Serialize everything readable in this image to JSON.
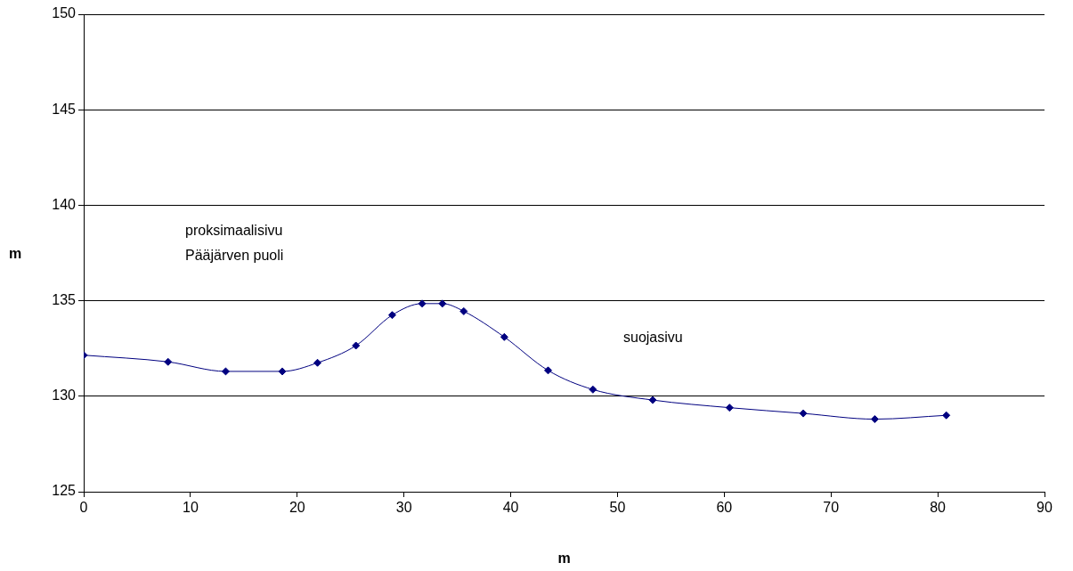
{
  "chart_data": {
    "type": "line",
    "xlabel": "m",
    "ylabel": "m",
    "x": [
      0,
      7.9,
      13.3,
      18.6,
      21.9,
      25.5,
      28.9,
      31.7,
      33.6,
      35.6,
      39.4,
      43.5,
      47.7,
      53.3,
      60.5,
      67.4,
      74.1,
      80.8
    ],
    "series": [
      {
        "color": "#000080",
        "values": [
          132.15,
          131.8,
          131.3,
          131.3,
          131.75,
          132.65,
          134.25,
          134.85,
          134.85,
          134.45,
          133.1,
          131.35,
          130.35,
          129.8,
          129.4,
          129.1,
          128.8,
          129.0
        ]
      }
    ],
    "xlim": [
      0,
      90
    ],
    "xticks": [
      0,
      10,
      20,
      30,
      40,
      50,
      60,
      70,
      80,
      90
    ],
    "ylim": [
      125,
      150
    ],
    "yticks": [
      125,
      130,
      135,
      140,
      145,
      150
    ],
    "grid": "y",
    "legend": false,
    "marker": "diamond",
    "line_style": "solid",
    "annotations": [
      "proksimaalisivu",
      "Pääjärven puoli",
      "suojasivu"
    ]
  }
}
